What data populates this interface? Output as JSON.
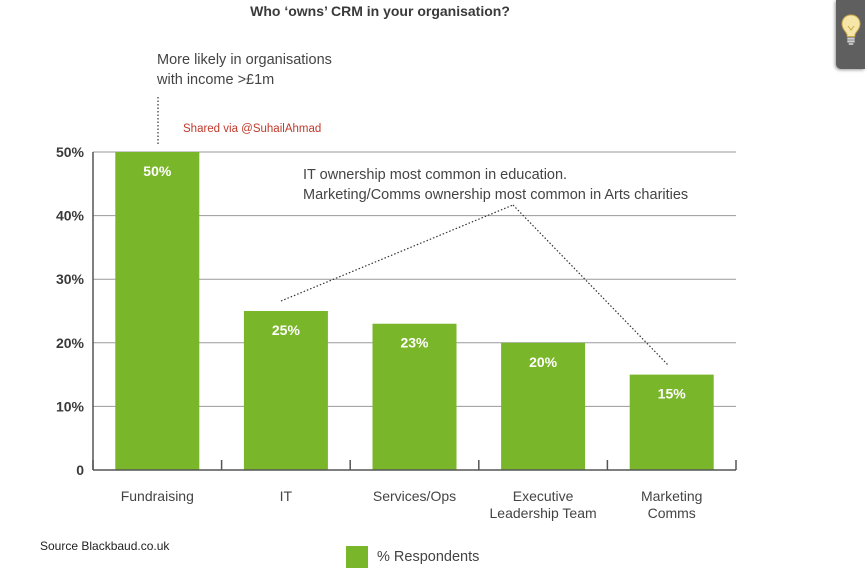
{
  "chart_data": {
    "type": "bar",
    "title": "Who ‘owns’ CRM in your organisation?",
    "categories": [
      [
        "Fundraising"
      ],
      [
        "IT"
      ],
      [
        "Services/Ops"
      ],
      [
        "Executive",
        "Leadership Team"
      ],
      [
        "Marketing",
        "Comms"
      ]
    ],
    "series": [
      {
        "name": "% Respondents",
        "values": [
          50,
          25,
          23,
          20,
          15
        ],
        "labels": [
          "50%",
          "25%",
          "23%",
          "20%",
          "15%"
        ],
        "color": "#7ab629"
      }
    ],
    "yticks": [
      "0",
      "10%",
      "20%",
      "30%",
      "40%",
      "50%"
    ],
    "ylim": [
      0,
      50
    ],
    "grid": true,
    "legend": "bottom-center",
    "annotations": {
      "income_note": [
        "More likely in organisations",
        "with income >£1m"
      ],
      "it_note": [
        "IT ownership most common in education.",
        "Marketing/Comms ownership most common in Arts charities"
      ]
    },
    "shared": "Shared via @SuhailAhmad",
    "source": "Source Blackbaud.co.uk"
  },
  "tip_icon": "lightbulb-icon",
  "colors": {
    "bar": "#7ab629",
    "grid": "#9a9a9a",
    "axis": "#555555",
    "tip_bg": "#5f5f5f"
  }
}
